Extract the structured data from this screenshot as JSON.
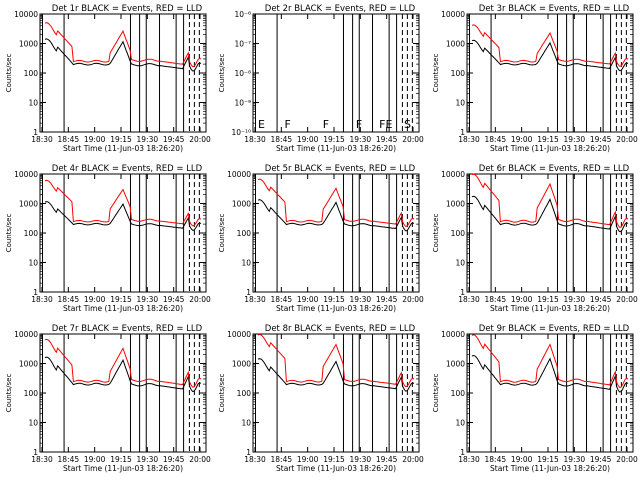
{
  "x_tick_labels": [
    "18:30",
    "18:45",
    "19:00",
    "19:15",
    "19:30",
    "19:45",
    "20:00"
  ],
  "y_label": "Counts/sec",
  "x_label": "Start Time (11-Jun-03 18:26:20)",
  "colors": {
    "events": "#000000",
    "lld": "#ff0000",
    "axes": "#000000",
    "background": "#ffffff"
  },
  "chart_data": [
    {
      "type": "line",
      "title": "Det 1r BLACK = Events, RED = LLD",
      "y_scale": "log",
      "ylim": [
        1,
        10000
      ],
      "y_tick_labels": [
        "1",
        "10",
        "100",
        "1000",
        "10000"
      ],
      "series_visible": true
    },
    {
      "type": "line",
      "title": "Det 2r BLACK = Events, RED = LLD",
      "y_scale": "log",
      "ylim": [
        1e-06,
        1e-10
      ],
      "y_tick_labels": [
        "10⁻¹⁰",
        "10⁻⁹",
        "10⁻⁸",
        "10⁻⁷",
        "10⁻⁶"
      ],
      "series_visible": false,
      "flag_labels": [
        "E",
        "F",
        "F",
        "F",
        "FE",
        "S"
      ]
    },
    {
      "type": "line",
      "title": "Det 3r BLACK = Events, RED = LLD",
      "y_scale": "log",
      "ylim": [
        1,
        10000
      ],
      "y_tick_labels": [
        "1",
        "10",
        "100",
        "1000",
        "10000"
      ],
      "series_visible": true
    },
    {
      "type": "line",
      "title": "Det 4r BLACK = Events, RED = LLD",
      "y_scale": "log",
      "ylim": [
        1,
        10000
      ],
      "y_tick_labels": [
        "1",
        "10",
        "100",
        "1000",
        "10000"
      ],
      "series_visible": true
    },
    {
      "type": "line",
      "title": "Det 5r BLACK = Events, RED = LLD",
      "y_scale": "log",
      "ylim": [
        1,
        10000
      ],
      "y_tick_labels": [
        "1",
        "10",
        "100",
        "1000",
        "10000"
      ],
      "series_visible": true
    },
    {
      "type": "line",
      "title": "Det 6r BLACK = Events, RED = LLD",
      "y_scale": "log",
      "ylim": [
        1,
        10000
      ],
      "y_tick_labels": [
        "1",
        "10",
        "100",
        "1000",
        "10000"
      ],
      "series_visible": true
    },
    {
      "type": "line",
      "title": "Det 7r BLACK = Events, RED = LLD",
      "y_scale": "log",
      "ylim": [
        1,
        10000
      ],
      "y_tick_labels": [
        "1",
        "10",
        "100",
        "1000",
        "10000"
      ],
      "series_visible": true
    },
    {
      "type": "line",
      "title": "Det 8r BLACK = Events, RED = LLD",
      "y_scale": "log",
      "ylim": [
        1,
        10000
      ],
      "y_tick_labels": [
        "1",
        "10",
        "100",
        "1000",
        "10000"
      ],
      "series_visible": true
    },
    {
      "type": "line",
      "title": "Det 9r BLACK = Events, RED = LLD",
      "y_scale": "log",
      "ylim": [
        1,
        10000
      ],
      "y_tick_labels": [
        "1",
        "10",
        "100",
        "1000",
        "10000"
      ],
      "series_visible": true
    }
  ]
}
